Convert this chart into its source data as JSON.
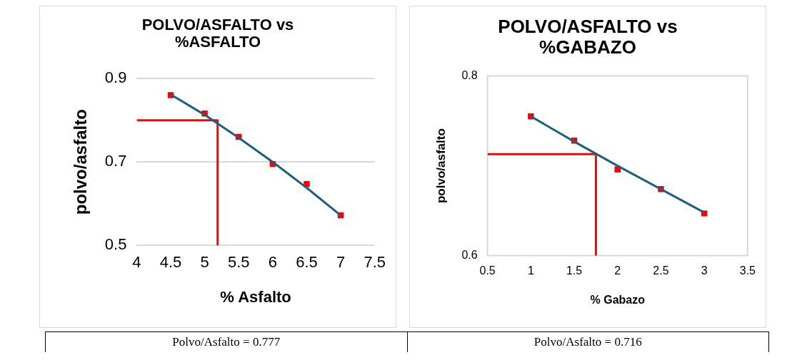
{
  "chart_data": [
    {
      "type": "scatter",
      "title": "POLVO/ASFALTO vs %ASFALTO",
      "xlabel": "% Asfalto",
      "ylabel": "polvo/asfalto",
      "xlim": [
        4,
        7.5
      ],
      "xticks": [
        4,
        4.5,
        5,
        5.5,
        6,
        6.5,
        7,
        7.5
      ],
      "ylim": [
        0.5,
        0.9
      ],
      "yticks": [
        0.5,
        0.7,
        0.9
      ],
      "grid": "y",
      "legend": false,
      "marker": "square",
      "series": [
        {
          "type": "line",
          "color": "#ff0000",
          "marker": "none",
          "x": [
            4,
            5.19,
            5.19
          ],
          "values": [
            0.8,
            0.8,
            0.5
          ]
        },
        {
          "type": "scatter",
          "color": "#ff0000",
          "x": [
            4.5,
            5,
            5.5,
            6,
            6.5,
            7
          ],
          "values": [
            0.86,
            0.816,
            0.76,
            0.695,
            0.647,
            0.572
          ]
        },
        {
          "type": "line",
          "color": "#1f5f7e",
          "marker": "none",
          "x": [
            4.5,
            5,
            5.5,
            6,
            6.5,
            7
          ],
          "values": [
            0.862,
            0.813,
            0.758,
            0.7,
            0.638,
            0.572
          ]
        }
      ],
      "annotations": [
        "Polvo/Asfalto = 0.777"
      ]
    },
    {
      "type": "scatter",
      "title": "POLVO/ASFALTO vs %GABAZO",
      "xlabel": "% Gabazo",
      "ylabel": "polvo/asfalto",
      "xlim": [
        0.5,
        3.5
      ],
      "xticks": [
        0.5,
        1,
        1.5,
        2,
        2.5,
        3,
        3.5
      ],
      "ylim": [
        0.6,
        0.8
      ],
      "yticks": [
        0.6,
        0.8
      ],
      "legend": false,
      "marker": "square",
      "series": [
        {
          "type": "line",
          "color": "#ff0000",
          "marker": "none",
          "x": [
            0.5,
            1.75,
            1.75
          ],
          "values": [
            0.713,
            0.713,
            0.6
          ]
        },
        {
          "type": "scatter",
          "color": "#ff0000",
          "x": [
            1,
            1.5,
            2,
            2.5,
            3
          ],
          "values": [
            0.755,
            0.728,
            0.696,
            0.674,
            0.647
          ]
        },
        {
          "type": "line",
          "color": "#1f5f7e",
          "marker": "none",
          "x": [
            1,
            1.5,
            2,
            2.5,
            3
          ],
          "values": [
            0.755,
            0.727,
            0.7,
            0.674,
            0.648
          ]
        }
      ],
      "annotations": [
        "Polvo/Asfalto = 0.716"
      ]
    }
  ]
}
